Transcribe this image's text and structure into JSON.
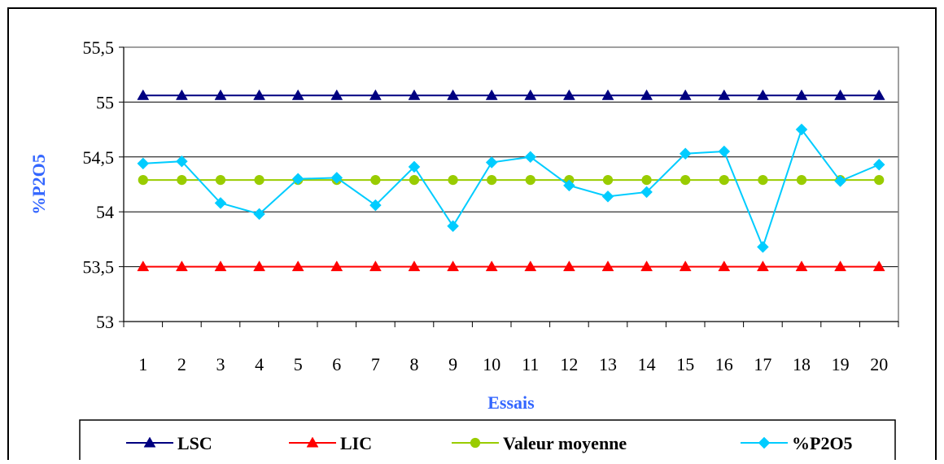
{
  "chart_data": {
    "type": "line",
    "title": "",
    "xlabel": "Essais",
    "ylabel": "%P2O5",
    "axis_title_color": "#3366FF",
    "categories": [
      "1",
      "2",
      "3",
      "4",
      "5",
      "6",
      "7",
      "8",
      "9",
      "10",
      "11",
      "12",
      "13",
      "14",
      "15",
      "16",
      "17",
      "18",
      "19",
      "20"
    ],
    "ylim": [
      53,
      55.5
    ],
    "yticks": [
      53,
      53.5,
      54,
      54.5,
      55,
      55.5
    ],
    "ytick_labels": [
      "53",
      "53,5",
      "54",
      "54,5",
      "55",
      "55,5"
    ],
    "grid": true,
    "legend_position": "bottom",
    "series": [
      {
        "name": "LSC",
        "color": "#000080",
        "marker": "triangle",
        "values": [
          55.06,
          55.06,
          55.06,
          55.06,
          55.06,
          55.06,
          55.06,
          55.06,
          55.06,
          55.06,
          55.06,
          55.06,
          55.06,
          55.06,
          55.06,
          55.06,
          55.06,
          55.06,
          55.06,
          55.06
        ]
      },
      {
        "name": "LIC",
        "color": "#FF0000",
        "marker": "triangle",
        "values": [
          53.5,
          53.5,
          53.5,
          53.5,
          53.5,
          53.5,
          53.5,
          53.5,
          53.5,
          53.5,
          53.5,
          53.5,
          53.5,
          53.5,
          53.5,
          53.5,
          53.5,
          53.5,
          53.5,
          53.5
        ]
      },
      {
        "name": "Valeur moyenne",
        "color": "#99CC00",
        "marker": "circle",
        "values": [
          54.29,
          54.29,
          54.29,
          54.29,
          54.29,
          54.29,
          54.29,
          54.29,
          54.29,
          54.29,
          54.29,
          54.29,
          54.29,
          54.29,
          54.29,
          54.29,
          54.29,
          54.29,
          54.29,
          54.29
        ]
      },
      {
        "name": "%P2O5",
        "color": "#00CCFF",
        "marker": "diamond",
        "values": [
          54.44,
          54.46,
          54.08,
          53.98,
          54.3,
          54.31,
          54.06,
          54.41,
          53.87,
          54.45,
          54.5,
          54.24,
          54.14,
          54.18,
          54.53,
          54.55,
          53.68,
          54.75,
          54.28,
          54.43
        ]
      }
    ]
  }
}
